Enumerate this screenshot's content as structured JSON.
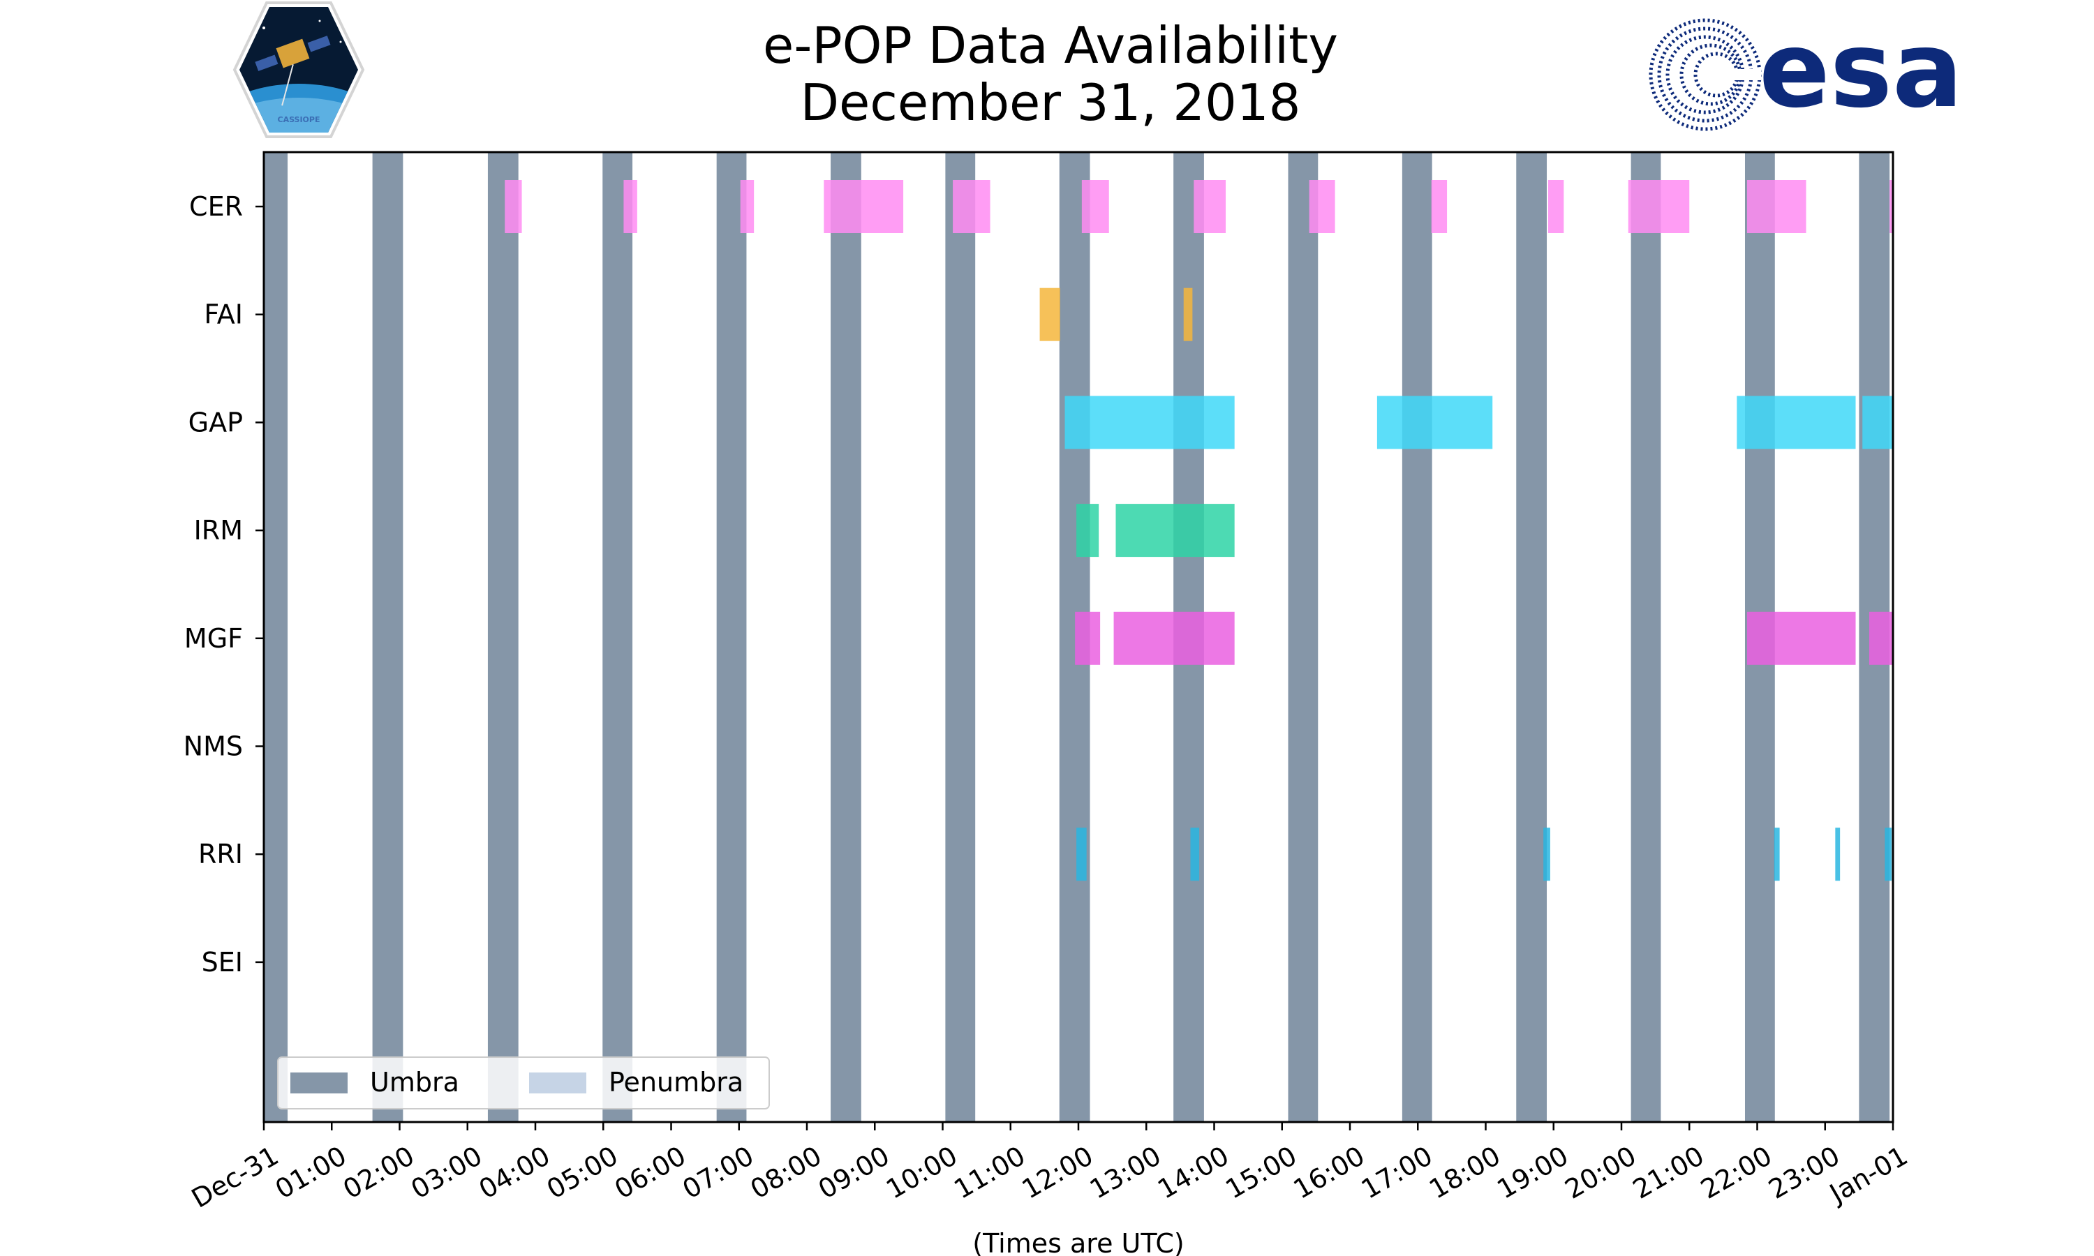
{
  "chart_data": {
    "type": "timeline",
    "title": [
      "e-POP Data Availability",
      "December 31, 2018"
    ],
    "xlabel": "(Times are UTC)",
    "xlim": [
      0,
      24
    ],
    "x_tick_labels": [
      "Dec-31",
      "01:00",
      "02:00",
      "03:00",
      "04:00",
      "05:00",
      "06:00",
      "07:00",
      "08:00",
      "09:00",
      "10:00",
      "11:00",
      "12:00",
      "13:00",
      "14:00",
      "15:00",
      "16:00",
      "17:00",
      "18:00",
      "19:00",
      "20:00",
      "21:00",
      "22:00",
      "23:00",
      "Jan-01"
    ],
    "instruments": [
      "CER",
      "FAI",
      "GAP",
      "IRM",
      "MGF",
      "NMS",
      "RRI",
      "SEI"
    ],
    "colors": {
      "umbra": "#8596a8",
      "penumbra": "#c6d4e6",
      "CER": "#ff8cf2",
      "FAI": "#f4b63c",
      "GAP": "#3fd8f8",
      "IRM": "#2ed3a6",
      "MGF": "#ea60e0",
      "RRI": "#29b6e0"
    },
    "umbra": [
      [
        0.0,
        0.35
      ],
      [
        1.6,
        2.05
      ],
      [
        3.3,
        3.75
      ],
      [
        4.99,
        5.43
      ],
      [
        6.67,
        7.11
      ],
      [
        8.35,
        8.8
      ],
      [
        10.04,
        10.48
      ],
      [
        11.72,
        12.17
      ],
      [
        13.4,
        13.85
      ],
      [
        15.09,
        15.53
      ],
      [
        16.77,
        17.21
      ],
      [
        18.45,
        18.9
      ],
      [
        20.14,
        20.58
      ],
      [
        21.82,
        22.26
      ],
      [
        23.5,
        23.95
      ]
    ],
    "series": [
      {
        "name": "CER",
        "intervals": [
          [
            3.55,
            3.8
          ],
          [
            5.3,
            5.5
          ],
          [
            7.02,
            7.22
          ],
          [
            8.25,
            9.42
          ],
          [
            10.15,
            10.7
          ],
          [
            12.05,
            12.45
          ],
          [
            13.7,
            14.17
          ],
          [
            15.4,
            15.78
          ],
          [
            17.2,
            17.43
          ],
          [
            18.92,
            19.15
          ],
          [
            20.1,
            21.0
          ],
          [
            21.85,
            22.72
          ],
          [
            23.95,
            24.0
          ]
        ]
      },
      {
        "name": "FAI",
        "intervals": [
          [
            11.43,
            11.73
          ],
          [
            13.55,
            13.68
          ]
        ]
      },
      {
        "name": "GAP",
        "intervals": [
          [
            11.8,
            14.3
          ],
          [
            16.4,
            18.1
          ],
          [
            21.7,
            23.45
          ],
          [
            23.55,
            24.0
          ]
        ]
      },
      {
        "name": "IRM",
        "intervals": [
          [
            11.97,
            12.3
          ],
          [
            12.55,
            14.3
          ]
        ]
      },
      {
        "name": "MGF",
        "intervals": [
          [
            11.95,
            12.32
          ],
          [
            12.52,
            14.3
          ],
          [
            21.85,
            23.45
          ],
          [
            23.65,
            24.0
          ]
        ]
      },
      {
        "name": "NMS",
        "intervals": []
      },
      {
        "name": "RRI",
        "intervals": [
          [
            11.97,
            12.12
          ],
          [
            13.65,
            13.78
          ],
          [
            18.85,
            18.95
          ],
          [
            22.25,
            22.33
          ],
          [
            23.15,
            23.22
          ],
          [
            23.88,
            23.98
          ]
        ]
      },
      {
        "name": "SEI",
        "intervals": []
      }
    ],
    "legend": {
      "position": "lower-left",
      "entries": [
        "Umbra",
        "Penumbra"
      ]
    },
    "grid": false
  },
  "logos": {
    "left": {
      "icon": "cassiope-mission-icon",
      "caption": "CASSIOPE"
    },
    "right": {
      "icon": "esa-logo-icon",
      "text": "esa"
    }
  }
}
